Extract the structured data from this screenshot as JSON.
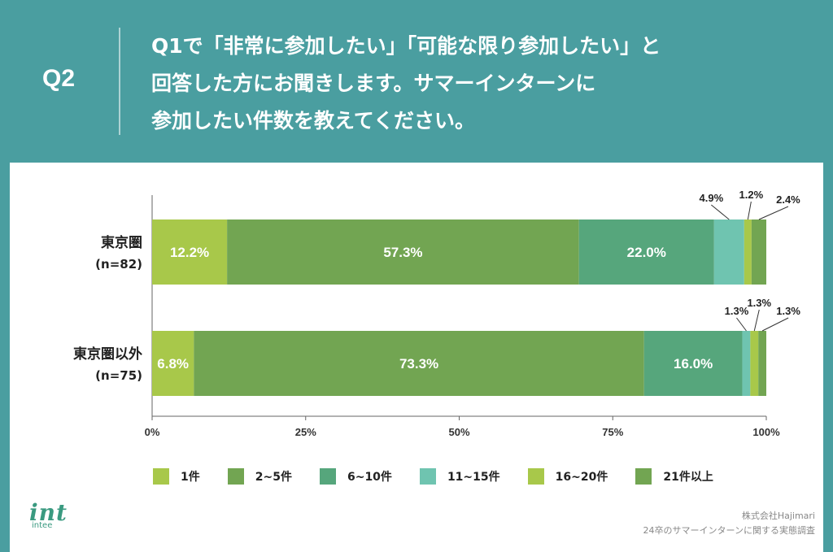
{
  "header": {
    "badge": "Q2",
    "question_lines": [
      "Q1で「非常に参加したい」「可能な限り参加したい」と",
      "回答した方にお聞きします。サマーインターンに",
      "参加したい件数を教えてください。"
    ]
  },
  "colors": {
    "header_bg": "#4a9ea0",
    "seg_1": "#a8c84a",
    "seg_2_5": "#72a552",
    "seg_6_10": "#56a67c",
    "seg_11_15": "#6fc4b0",
    "seg_16_20": "#a8c84a",
    "seg_21plus": "#72a552"
  },
  "chart_data": {
    "type": "bar",
    "orientation": "horizontal",
    "stacked": true,
    "categories": [
      "東京圏",
      "東京圏以外"
    ],
    "category_sublabels": [
      "(n=82)",
      "(n=75)"
    ],
    "series": [
      {
        "name": "1件",
        "values": [
          12.2,
          6.8
        ],
        "color": "#a8c84a"
      },
      {
        "name": "2~5件",
        "values": [
          57.3,
          73.3
        ],
        "color": "#72a552"
      },
      {
        "name": "6~10件",
        "values": [
          22.0,
          16.0
        ],
        "color": "#56a67c"
      },
      {
        "name": "11~15件",
        "values": [
          4.9,
          1.3
        ],
        "color": "#6fc4b0"
      },
      {
        "name": "16~20件",
        "values": [
          1.2,
          1.3
        ],
        "color": "#a8c84a"
      },
      {
        "name": "21件以上",
        "values": [
          2.4,
          1.3
        ],
        "color": "#72a552"
      }
    ],
    "data_labels": [
      [
        "12.2%",
        "57.3%",
        "22.0%",
        "4.9%",
        "1.2%",
        "2.4%"
      ],
      [
        "6.8%",
        "73.3%",
        "16.0%",
        "1.3%",
        "1.3%",
        "1.3%"
      ]
    ],
    "xlim": [
      0,
      100
    ],
    "xticks": [
      0,
      25,
      50,
      75,
      100
    ],
    "xtick_labels": [
      "0%",
      "25%",
      "50%",
      "75%",
      "100%"
    ],
    "grid": false,
    "legend_position": "bottom"
  },
  "logo": {
    "mark": "int",
    "sub": "intee"
  },
  "source": {
    "company": "株式会社Hajimari",
    "survey": "24卒のサマーインターンに関する実態調査"
  }
}
